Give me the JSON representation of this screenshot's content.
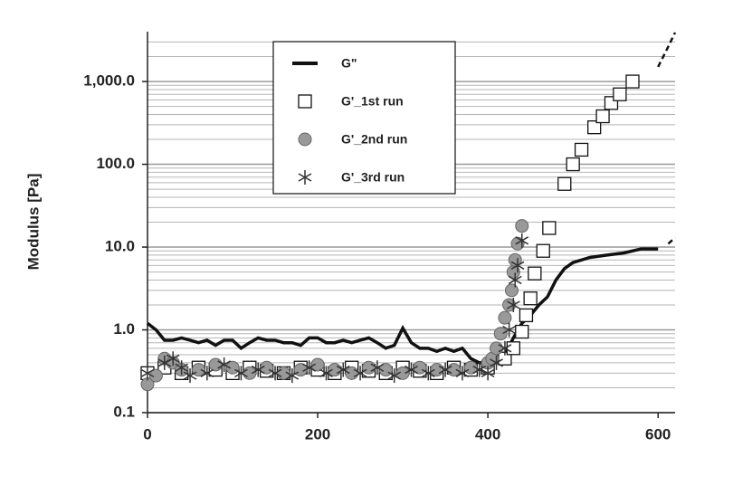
{
  "chart_data": {
    "type": "scatter",
    "y_label": "Modulus [Pa]",
    "y_scale": "log",
    "xlim": [
      0,
      620
    ],
    "xticks": [
      0,
      200,
      400,
      600
    ],
    "ylim": [
      0.1,
      4000
    ],
    "yticks": [
      0.1,
      {
        "value": 1,
        "label": "1.0"
      },
      {
        "value": 10,
        "label": "10.0"
      },
      {
        "value": 100,
        "label": "100.0"
      },
      {
        "value": 1000,
        "label": "1,000.0"
      }
    ],
    "grid": "minor",
    "legend": "top",
    "series": [
      {
        "name": "G\"",
        "marker": "line",
        "color": "#111111",
        "x": [
          0,
          10,
          20,
          30,
          40,
          50,
          60,
          70,
          80,
          90,
          100,
          110,
          120,
          130,
          140,
          150,
          160,
          170,
          180,
          190,
          200,
          210,
          220,
          230,
          240,
          250,
          260,
          270,
          280,
          290,
          300,
          310,
          320,
          330,
          340,
          350,
          360,
          370,
          380,
          390,
          400,
          410,
          420,
          430,
          440,
          450,
          460,
          470,
          480,
          490,
          500,
          520,
          540,
          560,
          580,
          600
        ],
        "values": [
          1.2,
          1.0,
          0.75,
          0.75,
          0.8,
          0.75,
          0.7,
          0.75,
          0.65,
          0.75,
          0.75,
          0.6,
          0.7,
          0.8,
          0.75,
          0.75,
          0.7,
          0.7,
          0.65,
          0.8,
          0.8,
          0.7,
          0.7,
          0.75,
          0.7,
          0.75,
          0.8,
          0.7,
          0.6,
          0.65,
          1.05,
          0.7,
          0.6,
          0.6,
          0.55,
          0.6,
          0.55,
          0.6,
          0.45,
          0.4,
          0.4,
          0.4,
          0.5,
          0.8,
          1.2,
          1.5,
          2,
          2.5,
          4,
          5.5,
          6.5,
          7.5,
          8,
          8.5,
          9.5,
          9.5
        ]
      },
      {
        "name": "G'_1st run",
        "marker": "square",
        "color": "#111111",
        "x": [
          0,
          20,
          40,
          60,
          80,
          100,
          120,
          140,
          160,
          180,
          200,
          220,
          240,
          260,
          280,
          300,
          320,
          340,
          360,
          380,
          400,
          420,
          430,
          440,
          445,
          450,
          455,
          465,
          472,
          490,
          500,
          510,
          525,
          535,
          545,
          555,
          570
        ],
        "values": [
          0.3,
          0.35,
          0.3,
          0.35,
          0.33,
          0.3,
          0.35,
          0.32,
          0.3,
          0.35,
          0.33,
          0.3,
          0.35,
          0.32,
          0.3,
          0.35,
          0.32,
          0.3,
          0.35,
          0.33,
          0.35,
          0.45,
          0.6,
          0.95,
          1.5,
          2.4,
          4.8,
          9,
          17,
          58,
          100,
          150,
          280,
          380,
          550,
          700,
          1000
        ]
      },
      {
        "name": "G'_2nd run",
        "marker": "circle",
        "color": "#999999",
        "x": [
          0,
          10,
          20,
          30,
          40,
          60,
          80,
          100,
          120,
          140,
          160,
          180,
          200,
          220,
          240,
          260,
          280,
          300,
          320,
          340,
          360,
          380,
          400,
          405,
          410,
          415,
          420,
          425,
          428,
          430,
          432,
          435,
          440
        ],
        "values": [
          0.22,
          0.28,
          0.45,
          0.4,
          0.33,
          0.33,
          0.38,
          0.35,
          0.3,
          0.35,
          0.3,
          0.33,
          0.38,
          0.33,
          0.3,
          0.35,
          0.33,
          0.3,
          0.35,
          0.33,
          0.33,
          0.35,
          0.4,
          0.45,
          0.6,
          0.9,
          1.4,
          2,
          3,
          5,
          7,
          11,
          18
        ]
      },
      {
        "name": "G'_3rd run",
        "marker": "asterisk",
        "color": "#333333",
        "x": [
          0,
          20,
          30,
          40,
          50,
          70,
          90,
          110,
          130,
          150,
          170,
          190,
          210,
          230,
          250,
          270,
          290,
          310,
          330,
          350,
          370,
          390,
          400,
          410,
          420,
          425,
          430,
          432,
          435,
          440
        ],
        "values": [
          0.3,
          0.4,
          0.45,
          0.35,
          0.28,
          0.3,
          0.38,
          0.3,
          0.33,
          0.3,
          0.28,
          0.35,
          0.3,
          0.33,
          0.3,
          0.35,
          0.28,
          0.33,
          0.3,
          0.33,
          0.3,
          0.33,
          0.3,
          0.4,
          0.6,
          1,
          2,
          4,
          6,
          12
        ]
      },
      {
        "marker": "dash",
        "color": "#111111",
        "x": [
          600,
          610,
          620
        ],
        "values": [
          1500,
          2400,
          3900
        ]
      },
      {
        "marker": "dash",
        "color": "#111111",
        "x": [
          612,
          620
        ],
        "values": [
          11,
          13
        ]
      }
    ]
  }
}
